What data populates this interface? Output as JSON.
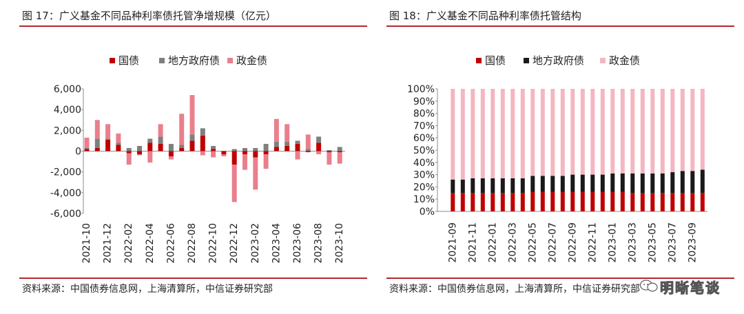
{
  "colors": {
    "guozhai": "#c00000",
    "difang": "#7f7f7f",
    "zhengjin": "#ea7f8c",
    "guozhai2": "#c00000",
    "difang2": "#1a1a1a",
    "zhengjin2": "#f4b6c1",
    "rule": "#b5262e"
  },
  "left": {
    "title": "图 17：广义基金不同品种利率债托管净增规模（亿元）",
    "source": "资料来源：中国债券信息网，上海清算所，中信证券研究部"
  },
  "right": {
    "title": "图 18：广义基金不同品种利率债托管结构",
    "source": "资料来源：中国债券信息网，上海清算所，中信证券研究部"
  },
  "watermark": {
    "text": "明晰笔谈",
    "icon": "wechat-icon"
  },
  "chart_data": [
    {
      "type": "bar",
      "stacked": true,
      "legend_position": "top",
      "categories": [
        "2021-10",
        "2021-11",
        "2021-12",
        "2022-01",
        "2022-02",
        "2022-03",
        "2022-04",
        "2022-05",
        "2022-06",
        "2022-07",
        "2022-08",
        "2022-09",
        "2022-10",
        "2022-11",
        "2022-12",
        "2023-01",
        "2023-02",
        "2023-03",
        "2023-04",
        "2023-05",
        "2023-06",
        "2023-07",
        "2023-08",
        "2023-09",
        "2023-10"
      ],
      "tick_labels": [
        "2021-10",
        "2021-12",
        "2022-02",
        "2022-04",
        "2022-06",
        "2022-08",
        "2022-10",
        "2022-12",
        "2023-02",
        "2023-04",
        "2023-06",
        "2023-08",
        "2023-10"
      ],
      "series": [
        {
          "name": "国债",
          "values": [
            200,
            300,
            1100,
            600,
            -200,
            -300,
            800,
            700,
            -500,
            300,
            1000,
            1500,
            200,
            -300,
            -1300,
            -300,
            -600,
            -300,
            400,
            500,
            700,
            -100,
            800,
            -100,
            -100
          ]
        },
        {
          "name": "地方政府债",
          "values": [
            100,
            900,
            100,
            200,
            300,
            500,
            400,
            700,
            700,
            300,
            600,
            700,
            300,
            0,
            200,
            300,
            300,
            700,
            500,
            400,
            300,
            200,
            600,
            100,
            400
          ]
        },
        {
          "name": "政金债",
          "values": [
            1000,
            1800,
            1400,
            900,
            -1100,
            -100,
            -1100,
            1200,
            -300,
            3000,
            3800,
            -400,
            -600,
            -200,
            -3600,
            -1500,
            -3100,
            -1400,
            2200,
            1700,
            -800,
            1400,
            -300,
            -1200,
            -1100
          ]
        }
      ],
      "ylim": [
        -6000,
        6000
      ],
      "yticks": [
        -6000,
        -4000,
        -2000,
        0,
        2000,
        4000,
        6000
      ],
      "ytick_labels": [
        "-6,000",
        "-4,000",
        "-2,000",
        "0",
        "2,000",
        "4,000",
        "6,000"
      ]
    },
    {
      "type": "bar",
      "stacked": true,
      "percent": true,
      "legend_position": "top",
      "categories": [
        "2021-09",
        "2021-10",
        "2021-11",
        "2021-12",
        "2022-01",
        "2022-02",
        "2022-03",
        "2022-04",
        "2022-05",
        "2022-06",
        "2022-07",
        "2022-08",
        "2022-09",
        "2022-10",
        "2022-11",
        "2022-12",
        "2023-01",
        "2023-02",
        "2023-03",
        "2023-04",
        "2023-05",
        "2023-06",
        "2023-07",
        "2023-08",
        "2023-09",
        "2023-10"
      ],
      "tick_labels": [
        "2021-09",
        "2021-11",
        "2022-01",
        "2022-03",
        "2022-05",
        "2022-07",
        "2022-09",
        "2022-11",
        "2023-01",
        "2023-03",
        "2023-05",
        "2023-07",
        "2023-09"
      ],
      "series": [
        {
          "name": "国债",
          "values": [
            15,
            15,
            15,
            15,
            15,
            15,
            15,
            15,
            16,
            16,
            16,
            16,
            16,
            16,
            16,
            16,
            16,
            16,
            15,
            15,
            15,
            15,
            15,
            15,
            15,
            15
          ]
        },
        {
          "name": "地方政府债",
          "values": [
            11,
            11,
            12,
            12,
            12,
            12,
            12,
            12,
            13,
            13,
            13,
            13,
            14,
            14,
            14,
            14,
            15,
            15,
            16,
            16,
            16,
            16,
            17,
            18,
            18,
            19
          ]
        },
        {
          "name": "政金债",
          "values": [
            74,
            74,
            73,
            73,
            73,
            73,
            73,
            73,
            71,
            71,
            71,
            71,
            70,
            70,
            70,
            70,
            69,
            69,
            69,
            69,
            69,
            69,
            68,
            67,
            67,
            66
          ]
        }
      ],
      "ylim": [
        0,
        100
      ],
      "yticks": [
        0,
        10,
        20,
        30,
        40,
        50,
        60,
        70,
        80,
        90,
        100
      ],
      "ytick_labels": [
        "0%",
        "10%",
        "20%",
        "30%",
        "40%",
        "50%",
        "60%",
        "70%",
        "80%",
        "90%",
        "100%"
      ]
    }
  ]
}
